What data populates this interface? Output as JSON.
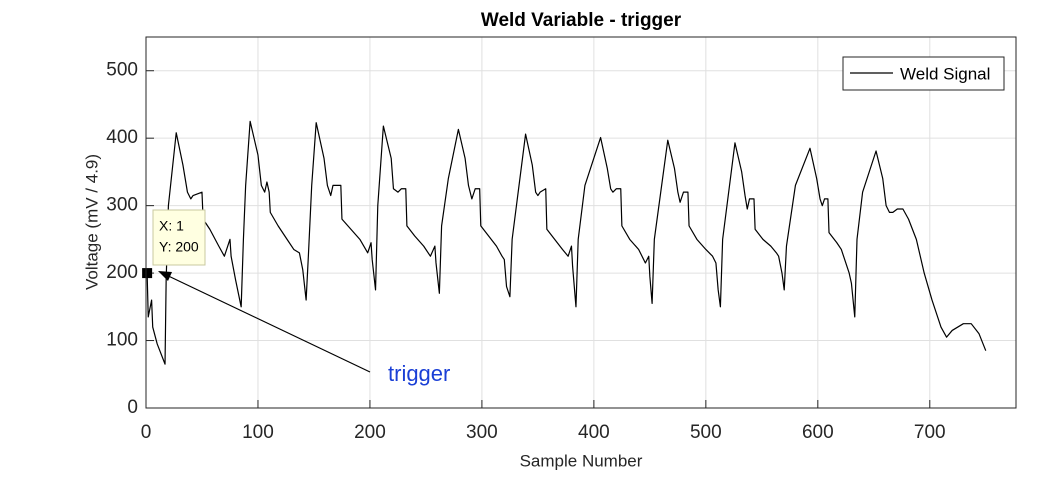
{
  "chart_data": {
    "type": "line",
    "title": "Weld Variable - trigger",
    "x_label": "Sample Number",
    "y_label": "Voltage (mV / 4.9)",
    "xlim": [
      0,
      777
    ],
    "ylim": [
      0,
      550
    ],
    "xticks": [
      0,
      100,
      200,
      300,
      400,
      500,
      600,
      700
    ],
    "yticks": [
      0,
      100,
      200,
      300,
      400,
      500
    ],
    "grid": true,
    "legend": "northeast",
    "x": [
      1,
      2,
      5,
      6,
      10,
      17,
      18,
      20,
      27,
      33,
      37,
      40,
      42,
      50,
      51,
      57,
      65,
      70,
      75,
      76,
      80,
      85,
      87,
      89,
      93,
      100,
      103,
      106,
      108,
      110,
      111,
      118,
      126,
      132,
      137,
      140,
      143,
      145,
      148,
      152,
      159,
      162,
      165,
      167,
      174,
      175,
      183,
      191,
      198,
      201,
      202,
      205,
      207,
      212,
      219,
      221,
      225,
      228,
      232,
      233,
      240,
      248,
      254,
      258,
      259,
      262,
      264,
      270,
      279,
      285,
      288,
      291,
      294,
      298,
      299,
      306,
      313,
      318,
      320,
      322,
      325,
      327,
      339,
      345,
      348,
      350,
      352,
      357,
      358,
      365,
      372,
      377,
      380,
      381,
      384,
      386,
      392,
      406,
      412,
      415,
      417,
      420,
      424,
      425,
      432,
      440,
      446,
      449,
      450,
      452,
      454,
      466,
      472,
      475,
      477,
      480,
      484,
      485,
      492,
      500,
      506,
      509,
      511,
      513,
      515,
      526,
      532,
      535,
      537,
      539,
      543,
      544,
      551,
      558,
      563,
      565,
      568,
      570,
      572,
      580,
      593,
      599,
      602,
      604,
      606,
      609,
      610,
      617,
      621,
      624,
      628,
      630,
      633,
      635,
      640,
      652,
      658,
      661,
      664,
      667,
      671,
      676,
      681,
      688,
      695,
      702,
      710,
      715,
      720,
      730,
      737,
      744,
      750
    ],
    "series": [
      {
        "name": "Weld Signal",
        "color": "#000000",
        "values": [
          200,
          135,
          160,
          120,
          95,
          65,
          190,
          300,
          408,
          360,
          320,
          310,
          315,
          320,
          280,
          265,
          240,
          225,
          250,
          225,
          190,
          150,
          250,
          330,
          425,
          375,
          330,
          320,
          335,
          320,
          290,
          270,
          250,
          235,
          230,
          205,
          160,
          225,
          330,
          423,
          370,
          330,
          315,
          330,
          330,
          280,
          265,
          250,
          230,
          245,
          220,
          175,
          300,
          418,
          370,
          325,
          320,
          325,
          325,
          270,
          255,
          240,
          225,
          240,
          215,
          170,
          270,
          340,
          413,
          370,
          330,
          310,
          325,
          325,
          270,
          255,
          240,
          225,
          220,
          180,
          165,
          250,
          406,
          360,
          320,
          315,
          320,
          325,
          265,
          250,
          235,
          225,
          240,
          210,
          150,
          250,
          330,
          401,
          355,
          325,
          320,
          325,
          325,
          270,
          250,
          235,
          215,
          225,
          195,
          155,
          250,
          397,
          355,
          320,
          305,
          320,
          320,
          270,
          250,
          235,
          225,
          215,
          175,
          150,
          250,
          393,
          350,
          315,
          295,
          310,
          310,
          265,
          250,
          240,
          230,
          225,
          200,
          175,
          240,
          330,
          385,
          340,
          310,
          300,
          310,
          310,
          260,
          245,
          235,
          220,
          200,
          185,
          135,
          250,
          320,
          381,
          340,
          300,
          290,
          290,
          295,
          295,
          280,
          250,
          200,
          160,
          120,
          105,
          115,
          125,
          125,
          110,
          85
        ]
      }
    ],
    "datatip": {
      "x": 1,
      "y": 200,
      "x_label": "X: 1",
      "y_label": "Y: 200"
    },
    "annotation": {
      "text": "trigger",
      "color": "#1a3fd6"
    }
  }
}
